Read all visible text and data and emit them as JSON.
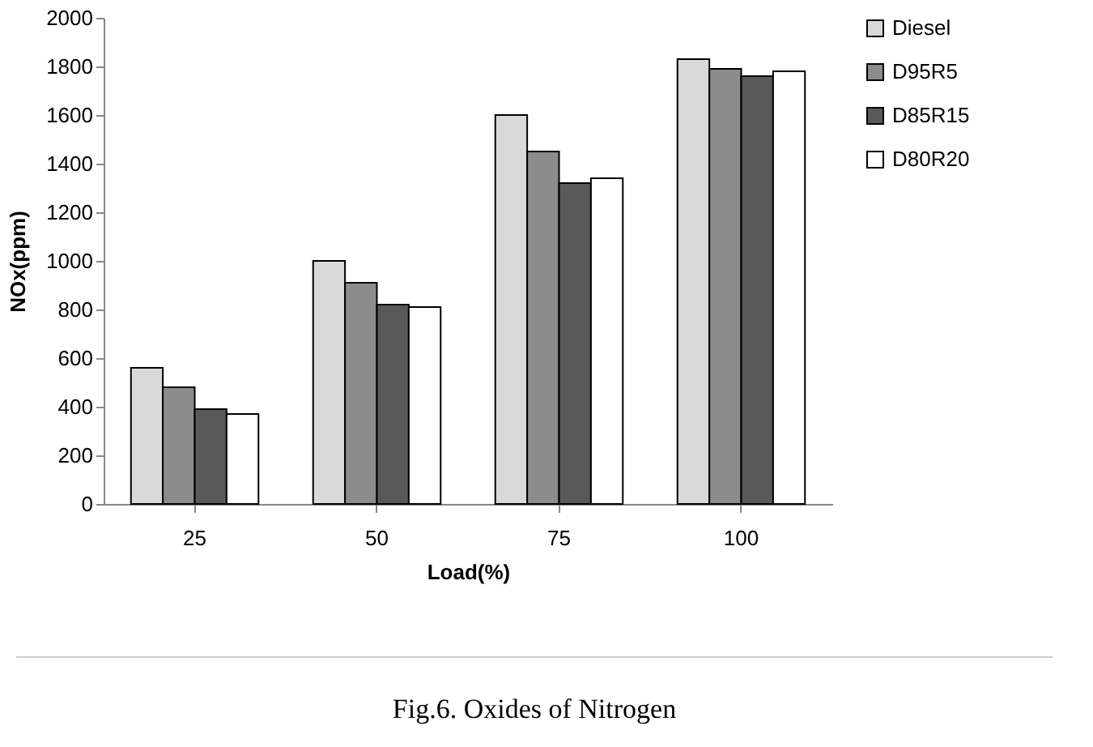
{
  "chart_data": {
    "type": "bar",
    "xlabel": "Load(%)",
    "ylabel": "NOx(ppm)",
    "categories": [
      "25",
      "50",
      "75",
      "100"
    ],
    "series": [
      {
        "name": "Diesel",
        "color": "#d9d9d9",
        "values": [
          560,
          1000,
          1600,
          1830
        ]
      },
      {
        "name": "D95R5",
        "color": "#8c8c8c",
        "values": [
          480,
          910,
          1450,
          1790
        ]
      },
      {
        "name": "D85R15",
        "color": "#595959",
        "values": [
          390,
          820,
          1320,
          1760
        ]
      },
      {
        "name": "D80R20",
        "color": "#ffffff",
        "values": [
          370,
          810,
          1340,
          1780
        ]
      }
    ],
    "ylim": [
      0,
      2000
    ],
    "yticks": [
      0,
      200,
      400,
      600,
      800,
      1000,
      1200,
      1400,
      1600,
      1800,
      2000
    ],
    "grid": false,
    "legend": "right",
    "annotations": [
      "Fig.6. Oxides of Nitrogen"
    ]
  }
}
